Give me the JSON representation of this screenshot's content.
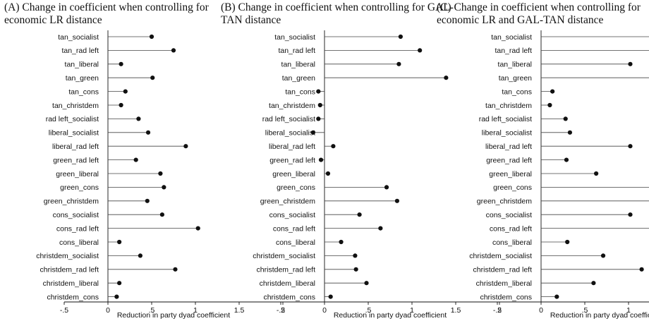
{
  "chart_data": [
    {
      "type": "scatter",
      "title_lines": [
        "(A)  Change  in  coefficient  when  controlling  for",
        "economic LR distance"
      ],
      "xlabel": "Reduction in party dyad coefficient",
      "xlim": [
        -0.5,
        2
      ],
      "xticks": [
        -0.5,
        0,
        0.5,
        1,
        1.5,
        2
      ],
      "xtick_labels": [
        "-.5",
        "0",
        ".5",
        "1",
        "1.5",
        "2"
      ],
      "categories": [
        "tan_socialist",
        "tan_rad left",
        "tan_liberal",
        "tan_green",
        "tan_cons",
        "tan_christdem",
        "rad left_socialist",
        "liberal_socialist",
        "liberal_rad left",
        "green_rad left",
        "green_liberal",
        "green_cons",
        "green_christdem",
        "cons_socialist",
        "cons_rad left",
        "cons_liberal",
        "christdem_socialist",
        "christdem_rad left",
        "christdem_liberal",
        "christdem_cons"
      ],
      "values": [
        0.5,
        0.75,
        0.15,
        0.51,
        0.2,
        0.15,
        0.35,
        0.46,
        0.89,
        0.32,
        0.6,
        0.64,
        0.45,
        0.62,
        1.03,
        0.13,
        0.37,
        0.77,
        0.13,
        0.1
      ]
    },
    {
      "type": "scatter",
      "title_lines": [
        "(B) Change in coefficient when controlling for GAL-",
        "TAN distance"
      ],
      "xlabel": "Reduction in party dyad coefficient",
      "xlim": [
        -0.5,
        2
      ],
      "xticks": [
        -0.5,
        0,
        0.5,
        1,
        1.5,
        2
      ],
      "xtick_labels": [
        "-.5",
        "0",
        ".5",
        "1",
        "1.5",
        "2"
      ],
      "categories": [
        "tan_socialist",
        "tan_rad left",
        "tan_liberal",
        "tan_green",
        "tan_cons",
        "tan_christdem",
        "rad left_socialist",
        "liberal_socialist",
        "liberal_rad left",
        "green_rad left",
        "green_liberal",
        "green_cons",
        "green_christdem",
        "cons_socialist",
        "cons_rad left",
        "cons_liberal",
        "christdem_socialist",
        "christdem_rad left",
        "christdem_liberal",
        "christdem_cons"
      ],
      "values": [
        0.87,
        1.09,
        0.85,
        1.39,
        -0.07,
        -0.05,
        -0.07,
        -0.13,
        0.1,
        -0.04,
        0.04,
        0.71,
        0.83,
        0.4,
        0.64,
        0.19,
        0.35,
        0.36,
        0.48,
        0.07
      ]
    },
    {
      "type": "scatter",
      "title_lines": [
        "(C)  Change  in  coefficient  when  controlling  for",
        "economic LR and GAL-TAN distance"
      ],
      "xlabel": "Reduction in party dyad coefficient",
      "xlim": [
        -0.5,
        2
      ],
      "xticks": [
        -0.5,
        0,
        0.5,
        1,
        1.5,
        2
      ],
      "xtick_labels": [
        "-.5",
        "0",
        ".5",
        "1",
        "1.5",
        "2"
      ],
      "categories": [
        "tan_socialist",
        "tan_rad left",
        "tan_liberal",
        "tan_green",
        "tan_cons",
        "tan_christdem",
        "rad left_socialist",
        "liberal_socialist",
        "liberal_rad left",
        "green_rad left",
        "green_liberal",
        "green_cons",
        "green_christdem",
        "cons_socialist",
        "cons_rad left",
        "cons_liberal",
        "christdem_socialist",
        "christdem_rad left",
        "christdem_liberal",
        "christdem_cons"
      ],
      "values": [
        1.38,
        1.86,
        1.02,
        1.93,
        0.13,
        0.1,
        0.28,
        0.33,
        1.02,
        0.29,
        0.63,
        1.35,
        1.3,
        1.02,
        1.68,
        0.3,
        0.71,
        1.15,
        0.6,
        0.18
      ]
    }
  ]
}
